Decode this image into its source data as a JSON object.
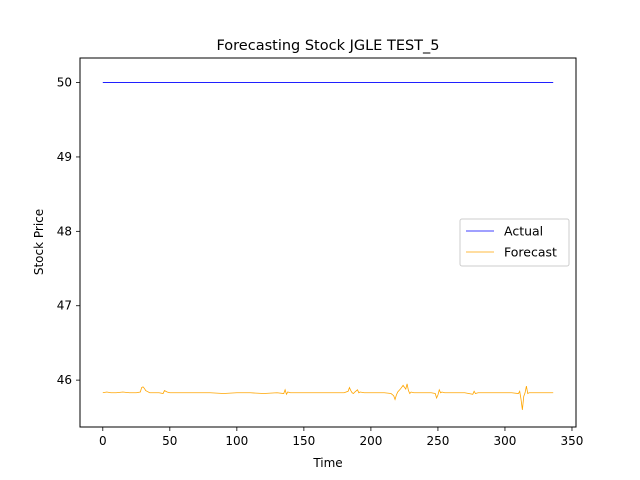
{
  "chart_data": {
    "type": "line",
    "title": "Forecasting Stock JGLE TEST_5",
    "xlabel": "Time",
    "ylabel": "Stock Price",
    "xlim": [
      -17,
      353
    ],
    "ylim": [
      45.37,
      50.33
    ],
    "xticks": [
      0,
      50,
      100,
      150,
      200,
      250,
      300,
      350
    ],
    "yticks": [
      46,
      47,
      48,
      49,
      50
    ],
    "grid": false,
    "legend_position": "center-right",
    "series": [
      {
        "name": "Actual",
        "color": "#0000ff",
        "x": [
          0,
          336
        ],
        "values": [
          50.0,
          50.0
        ]
      },
      {
        "name": "Forecast",
        "color": "#ffa500",
        "x": [
          0,
          3,
          6,
          10,
          15,
          20,
          25,
          28,
          29,
          30,
          31,
          32,
          33,
          35,
          38,
          42,
          45,
          46,
          48,
          50,
          55,
          60,
          70,
          80,
          90,
          100,
          110,
          120,
          130,
          135,
          136,
          137,
          138,
          140,
          150,
          160,
          170,
          180,
          183,
          184,
          185,
          186,
          187,
          188,
          190,
          191,
          192,
          195,
          200,
          210,
          215,
          217,
          218,
          219,
          220,
          222,
          224,
          226,
          227,
          228,
          229,
          230,
          232,
          235,
          240,
          245,
          248,
          249,
          250,
          251,
          252,
          253,
          255,
          260,
          270,
          276,
          277,
          278,
          280,
          290,
          300,
          305,
          310,
          311,
          312,
          313,
          314,
          315,
          316,
          317,
          318,
          320,
          325,
          330,
          336
        ],
        "values": [
          45.83,
          45.84,
          45.83,
          45.83,
          45.84,
          45.83,
          45.83,
          45.84,
          45.9,
          45.91,
          45.89,
          45.86,
          45.85,
          45.83,
          45.83,
          45.83,
          45.82,
          45.86,
          45.84,
          45.83,
          45.83,
          45.83,
          45.83,
          45.83,
          45.82,
          45.83,
          45.83,
          45.82,
          45.83,
          45.82,
          45.87,
          45.81,
          45.84,
          45.83,
          45.83,
          45.83,
          45.83,
          45.83,
          45.85,
          45.9,
          45.86,
          45.83,
          45.82,
          45.84,
          45.87,
          45.83,
          45.84,
          45.83,
          45.83,
          45.83,
          45.82,
          45.79,
          45.74,
          45.8,
          45.84,
          45.88,
          45.93,
          45.88,
          45.95,
          45.86,
          45.82,
          45.84,
          45.83,
          45.83,
          45.83,
          45.83,
          45.82,
          45.76,
          45.8,
          45.87,
          45.83,
          45.84,
          45.83,
          45.83,
          45.83,
          45.81,
          45.85,
          45.82,
          45.83,
          45.83,
          45.83,
          45.83,
          45.82,
          45.85,
          45.74,
          45.6,
          45.78,
          45.83,
          45.92,
          45.82,
          45.83,
          45.83,
          45.83,
          45.83,
          45.83
        ]
      }
    ]
  }
}
